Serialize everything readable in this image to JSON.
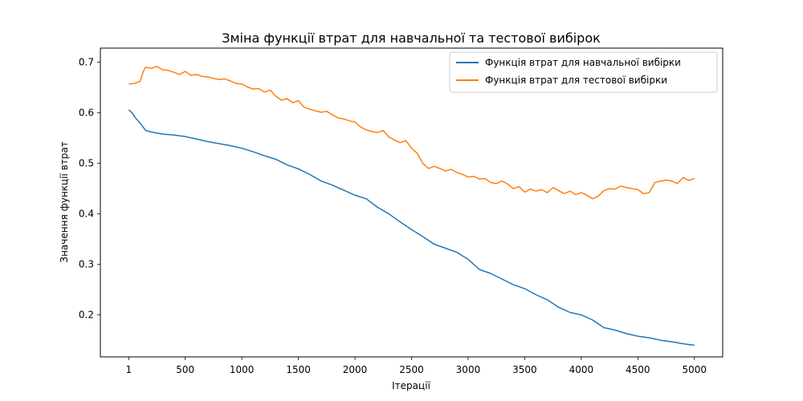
{
  "chart_data": {
    "type": "line",
    "title": "Зміна функції втрат для навчальної та тестової вибірок",
    "xlabel": "Ітерації",
    "ylabel": "Значення функції втрат",
    "xlim": [
      -250,
      5250
    ],
    "ylim": [
      0.117,
      0.728
    ],
    "xticks": [
      1,
      500,
      1000,
      1500,
      2000,
      2500,
      3000,
      3500,
      4000,
      4500,
      5000
    ],
    "xtick_labels": [
      "1",
      "500",
      "1000",
      "1500",
      "2000",
      "2500",
      "3000",
      "3500",
      "4000",
      "4500",
      "5000"
    ],
    "yticks": [
      0.2,
      0.3,
      0.4,
      0.5,
      0.6,
      0.7
    ],
    "ytick_labels": [
      "0.2",
      "0.3",
      "0.4",
      "0.5",
      "0.6",
      "0.7"
    ],
    "grid": false,
    "legend_position": "top-right",
    "series": [
      {
        "name": "Функція втрат для навчальної вибірки",
        "color": "#1f77b4",
        "x": [
          1,
          30,
          60,
          100,
          150,
          200,
          300,
          400,
          500,
          600,
          700,
          800,
          900,
          1000,
          1100,
          1200,
          1300,
          1400,
          1500,
          1600,
          1700,
          1800,
          1900,
          2000,
          2100,
          2200,
          2300,
          2400,
          2500,
          2600,
          2700,
          2800,
          2900,
          3000,
          3100,
          3200,
          3300,
          3400,
          3500,
          3600,
          3700,
          3800,
          3900,
          4000,
          4100,
          4200,
          4300,
          4400,
          4500,
          4600,
          4700,
          4800,
          4900,
          5000
        ],
        "y": [
          0.606,
          0.6,
          0.59,
          0.58,
          0.565,
          0.562,
          0.558,
          0.556,
          0.553,
          0.548,
          0.543,
          0.539,
          0.535,
          0.53,
          0.523,
          0.515,
          0.508,
          0.497,
          0.489,
          0.478,
          0.465,
          0.457,
          0.447,
          0.437,
          0.43,
          0.413,
          0.4,
          0.384,
          0.369,
          0.355,
          0.34,
          0.332,
          0.324,
          0.31,
          0.29,
          0.282,
          0.271,
          0.26,
          0.252,
          0.24,
          0.23,
          0.215,
          0.205,
          0.2,
          0.19,
          0.175,
          0.17,
          0.163,
          0.158,
          0.155,
          0.15,
          0.147,
          0.143,
          0.14
        ]
      },
      {
        "name": "Функція втрат для тестової вибірки",
        "color": "#ff7f0e",
        "x": [
          1,
          50,
          100,
          130,
          150,
          200,
          250,
          300,
          350,
          400,
          450,
          500,
          550,
          600,
          650,
          700,
          750,
          800,
          850,
          900,
          950,
          1000,
          1050,
          1100,
          1150,
          1200,
          1250,
          1300,
          1350,
          1400,
          1450,
          1500,
          1550,
          1600,
          1650,
          1700,
          1750,
          1800,
          1850,
          1900,
          1950,
          2000,
          2050,
          2100,
          2150,
          2200,
          2250,
          2300,
          2350,
          2400,
          2450,
          2500,
          2550,
          2600,
          2650,
          2700,
          2750,
          2800,
          2850,
          2900,
          2950,
          3000,
          3050,
          3100,
          3150,
          3200,
          3250,
          3300,
          3350,
          3400,
          3450,
          3500,
          3550,
          3600,
          3650,
          3700,
          3750,
          3800,
          3850,
          3900,
          3950,
          4000,
          4050,
          4100,
          4150,
          4200,
          4250,
          4300,
          4350,
          4400,
          4450,
          4500,
          4550,
          4600,
          4650,
          4700,
          4750,
          4800,
          4850,
          4900,
          4950,
          5000
        ],
        "y": [
          0.657,
          0.658,
          0.662,
          0.682,
          0.69,
          0.688,
          0.692,
          0.685,
          0.684,
          0.68,
          0.676,
          0.682,
          0.674,
          0.676,
          0.672,
          0.671,
          0.668,
          0.666,
          0.667,
          0.663,
          0.658,
          0.657,
          0.651,
          0.647,
          0.648,
          0.641,
          0.645,
          0.633,
          0.625,
          0.628,
          0.62,
          0.624,
          0.611,
          0.607,
          0.604,
          0.601,
          0.603,
          0.596,
          0.59,
          0.588,
          0.584,
          0.582,
          0.572,
          0.566,
          0.563,
          0.561,
          0.565,
          0.552,
          0.546,
          0.541,
          0.545,
          0.53,
          0.52,
          0.5,
          0.49,
          0.494,
          0.49,
          0.485,
          0.488,
          0.482,
          0.478,
          0.473,
          0.474,
          0.469,
          0.47,
          0.462,
          0.46,
          0.465,
          0.459,
          0.45,
          0.454,
          0.443,
          0.449,
          0.445,
          0.448,
          0.442,
          0.452,
          0.446,
          0.44,
          0.445,
          0.438,
          0.442,
          0.437,
          0.43,
          0.435,
          0.446,
          0.45,
          0.449,
          0.455,
          0.452,
          0.45,
          0.448,
          0.44,
          0.442,
          0.462,
          0.465,
          0.467,
          0.465,
          0.46,
          0.472,
          0.466,
          0.47
        ]
      }
    ]
  }
}
